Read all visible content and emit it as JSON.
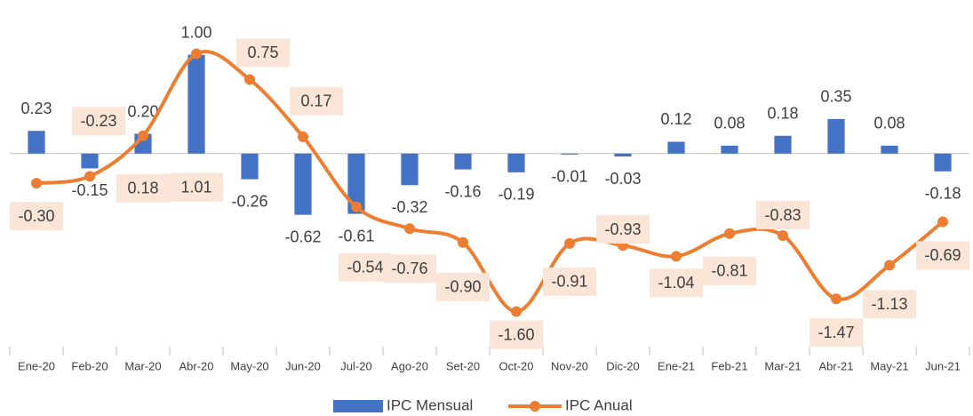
{
  "chart_data": {
    "type": "combo",
    "categories": [
      "Ene-20",
      "Feb-20",
      "Mar-20",
      "Abr-20",
      "May-20",
      "Jun-20",
      "Jul-20",
      "Ago-20",
      "Set-20",
      "Oct-20",
      "Nov-20",
      "Dic-20",
      "Ene-21",
      "Feb-21",
      "Mar-21",
      "Abr-21",
      "May-21",
      "Jun-21"
    ],
    "ylim": [
      -2.0,
      1.6
    ],
    "series": [
      {
        "name": "IPC Mensual",
        "type": "bar",
        "color": "#4472c4",
        "values": [
          0.23,
          -0.15,
          0.2,
          1.0,
          -0.26,
          -0.62,
          -0.61,
          -0.32,
          -0.16,
          -0.19,
          -0.01,
          -0.03,
          0.12,
          0.08,
          0.18,
          0.35,
          0.08,
          -0.18
        ],
        "value_labels": [
          "0.23",
          "-0.15",
          "0.20",
          "1.00",
          "-0.26",
          "-0.62",
          "-0.61",
          "-0.32",
          "-0.16",
          "-0.19",
          "-0.01",
          "-0.03",
          "0.12",
          "0.08",
          "0.18",
          "0.35",
          "0.08",
          "-0.18"
        ]
      },
      {
        "name": "IPC Anual",
        "type": "line",
        "color": "#ed7d31",
        "values": [
          -0.3,
          -0.23,
          0.18,
          1.01,
          0.75,
          0.17,
          -0.54,
          -0.76,
          -0.9,
          -1.6,
          -0.91,
          -0.93,
          -1.04,
          -0.81,
          -0.83,
          -1.47,
          -1.13,
          -0.69
        ],
        "value_labels": [
          "-0.30",
          "-0.23",
          "0.18",
          "1.01",
          "0.75",
          "0.17",
          "-0.54",
          "-0.76",
          "-0.90",
          "-1.60",
          "-0.91",
          "-0.93",
          "-1.04",
          "-0.81",
          "-0.83",
          "-1.47",
          "-1.13",
          "-0.69"
        ]
      }
    ]
  }
}
